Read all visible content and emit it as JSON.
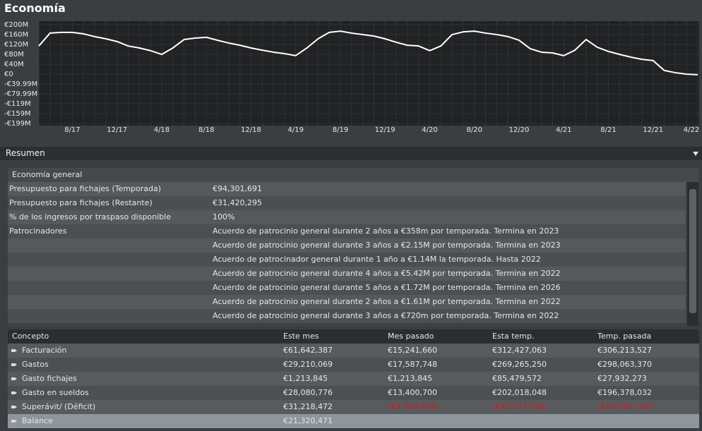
{
  "title": "Economía",
  "chart_data": {
    "type": "line",
    "color": "#ffffff",
    "grid": true,
    "categories": [
      null,
      null,
      null,
      "8/17",
      null,
      null,
      null,
      "12/17",
      null,
      null,
      null,
      "4/18",
      null,
      null,
      null,
      "8/18",
      null,
      null,
      null,
      "12/18",
      null,
      null,
      null,
      "4/19",
      null,
      null,
      null,
      "8/19",
      null,
      null,
      null,
      "12/19",
      null,
      null,
      null,
      "4/20",
      null,
      null,
      null,
      "8/20",
      null,
      null,
      null,
      "12/20",
      null,
      null,
      null,
      "4/21",
      null,
      null,
      null,
      "8/21",
      null,
      null,
      null,
      "12/21",
      null,
      null,
      null,
      "4/22"
    ],
    "values": [
      114,
      166,
      169,
      169,
      163,
      152,
      143,
      132,
      114,
      106,
      95,
      80,
      106,
      140,
      146,
      149,
      137,
      126,
      117,
      106,
      97,
      89,
      83,
      75,
      106,
      143,
      169,
      174,
      166,
      160,
      154,
      143,
      129,
      117,
      114,
      95,
      114,
      160,
      171,
      174,
      166,
      160,
      152,
      137,
      103,
      89,
      86,
      75,
      97,
      140,
      109,
      92,
      80,
      69,
      60,
      55,
      15,
      6,
      0,
      -2
    ],
    "ylim": [
      -199,
      200
    ],
    "yticks": [
      {
        "value": 200,
        "label": "€200M"
      },
      {
        "value": 160,
        "label": "€160M"
      },
      {
        "value": 120,
        "label": "€120M"
      },
      {
        "value": 80,
        "label": "€80M"
      },
      {
        "value": 40,
        "label": "€40M"
      },
      {
        "value": 0,
        "label": "€0"
      },
      {
        "value": -39.99,
        "label": "-€39.99M"
      },
      {
        "value": -79.99,
        "label": "-€79.99M"
      },
      {
        "value": -119,
        "label": "-€119M"
      },
      {
        "value": -159,
        "label": "-€159M"
      },
      {
        "value": -199,
        "label": "-€199M"
      }
    ]
  },
  "summary": {
    "title": "Resumen",
    "general": {
      "title": "Economía general",
      "rows": [
        {
          "label": "Presupuesto para fichajes (Temporada)",
          "values": [
            "€94,301,691"
          ]
        },
        {
          "label": "Presupuesto para fichajes (Restante)",
          "values": [
            "€31,420,295"
          ]
        },
        {
          "label": "% de los ingresos por traspaso disponible",
          "values": [
            "100%"
          ]
        },
        {
          "label": "Patrocinadores",
          "values": [
            "Acuerdo de patrocinio general durante 2 años a €358m por temporada. Termina en 2023",
            "Acuerdo de patrocinio general durante 3 años a €2.15M por temporada. Termina en 2023",
            "Acuerdo de patrocinador general durante 1 año a €1.14M la temporada. Hasta 2022",
            "Acuerdo de patrocinio general durante 4 años a €5.42M por temporada. Termina en 2022",
            "Acuerdo de patrocinio general durante 5 años a €1.72M por temporada. Termina en 2026",
            "Acuerdo de patrocinio general durante 2 años a €1.61M por temporada. Termina en 2022",
            "Acuerdo de patrocinio general durante 3 años a €720m por temporada. Termina en 2022"
          ]
        }
      ]
    },
    "finance": {
      "columns": [
        "Concepto",
        "Este mes",
        "Mes pasado",
        "Esta temp.",
        "Temp. pasada"
      ],
      "negative_color": "#d41a1a",
      "rows": [
        {
          "label": "Facturación",
          "values": [
            "€61,642,387",
            "€15,241,660",
            "€312,427,063",
            "€306,213,527"
          ]
        },
        {
          "label": "Gastos",
          "values": [
            "€29,210,069",
            "€17,587,748",
            "€269,265,250",
            "€298,063,370"
          ]
        },
        {
          "label": "Gasto fichajes",
          "values": [
            "€1,213,845",
            "€1,213,845",
            "€85,479,572",
            "€27,932,273"
          ]
        },
        {
          "label": "Gasto en sueldos",
          "values": [
            "€28,080,776",
            "€13,400,700",
            "€202,018,048",
            "€196,378,032"
          ]
        },
        {
          "label": "Superávit/ (Déficit)",
          "values": [
            "€31,218,472",
            "(€3,559,934)",
            "(€42,317,760)",
            "(€19,782,116)"
          ]
        },
        {
          "label": "Balance",
          "values": [
            "€21,320,471"
          ]
        }
      ]
    }
  }
}
